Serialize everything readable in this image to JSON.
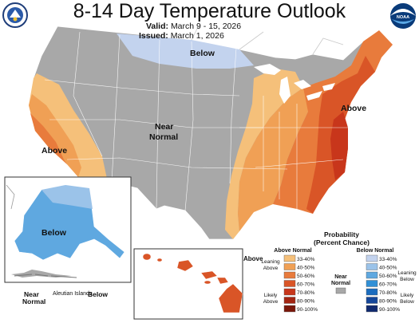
{
  "header": {
    "title": "8-14 Day Temperature Outlook",
    "valid_label": "Valid:",
    "valid_value": "March 9 - 15, 2026",
    "issued_label": "Issued:",
    "issued_value": "March 1, 2026"
  },
  "logos": {
    "left": "department-seal",
    "right": "noaa-logo",
    "right_text": "NOAA"
  },
  "map_labels": {
    "below_north": "Below",
    "near_normal": [
      "Near",
      "Normal"
    ],
    "above_west": "Above",
    "above_east": "Above",
    "alaska_below": "Below",
    "alaska_near_normal": [
      "Near",
      "Normal"
    ],
    "aleutian": "Aleutian Islands",
    "aleutian_below": "Below",
    "hawaii_above": "Above"
  },
  "colors": {
    "near_normal": "#a8a8a8",
    "above": [
      "#f5c07a",
      "#f0a055",
      "#e87b3c",
      "#d95527",
      "#c8361b",
      "#a32512",
      "#7a170a"
    ],
    "below": [
      "#c3d3ee",
      "#9bc3e9",
      "#5fa8e0",
      "#3190d6",
      "#1c6dbf",
      "#15479a",
      "#102a6f"
    ]
  },
  "legend": {
    "title": [
      "Probability",
      "(Percent Chance)"
    ],
    "above_header": "Above Normal",
    "below_header": "Below Normal",
    "near_label": [
      "Near",
      "Normal"
    ],
    "ranges": [
      "33-40%",
      "40-50%",
      "50-60%",
      "60-70%",
      "70-80%",
      "80-90%",
      "90-100%"
    ],
    "leaning_above": [
      "Leaning",
      "Above"
    ],
    "likely_above": [
      "Likely",
      "Above"
    ],
    "leaning_below": [
      "Leaning",
      "Below"
    ],
    "likely_below": [
      "Likely",
      "Below"
    ]
  }
}
